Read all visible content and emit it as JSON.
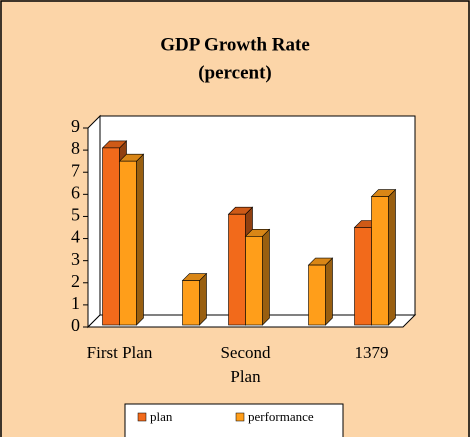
{
  "chart_data": {
    "type": "bar3d",
    "title": "GDP Growth Rate",
    "subtitle": "(percent)",
    "categories": [
      "First Plan",
      null,
      "Second Plan",
      null,
      "1379"
    ],
    "series": [
      {
        "name": "plan",
        "color": "#f26a1b",
        "values": [
          8.1,
          null,
          5.1,
          null,
          4.5
        ]
      },
      {
        "name": "performance",
        "color": "#ff9e1a",
        "values": [
          7.5,
          2.1,
          4.1,
          2.8,
          5.9
        ]
      }
    ],
    "ylim": [
      0,
      9
    ],
    "yticks": [
      0,
      1,
      2,
      3,
      4,
      5,
      6,
      7,
      8,
      9
    ],
    "grid": false,
    "legend": "bottom"
  }
}
